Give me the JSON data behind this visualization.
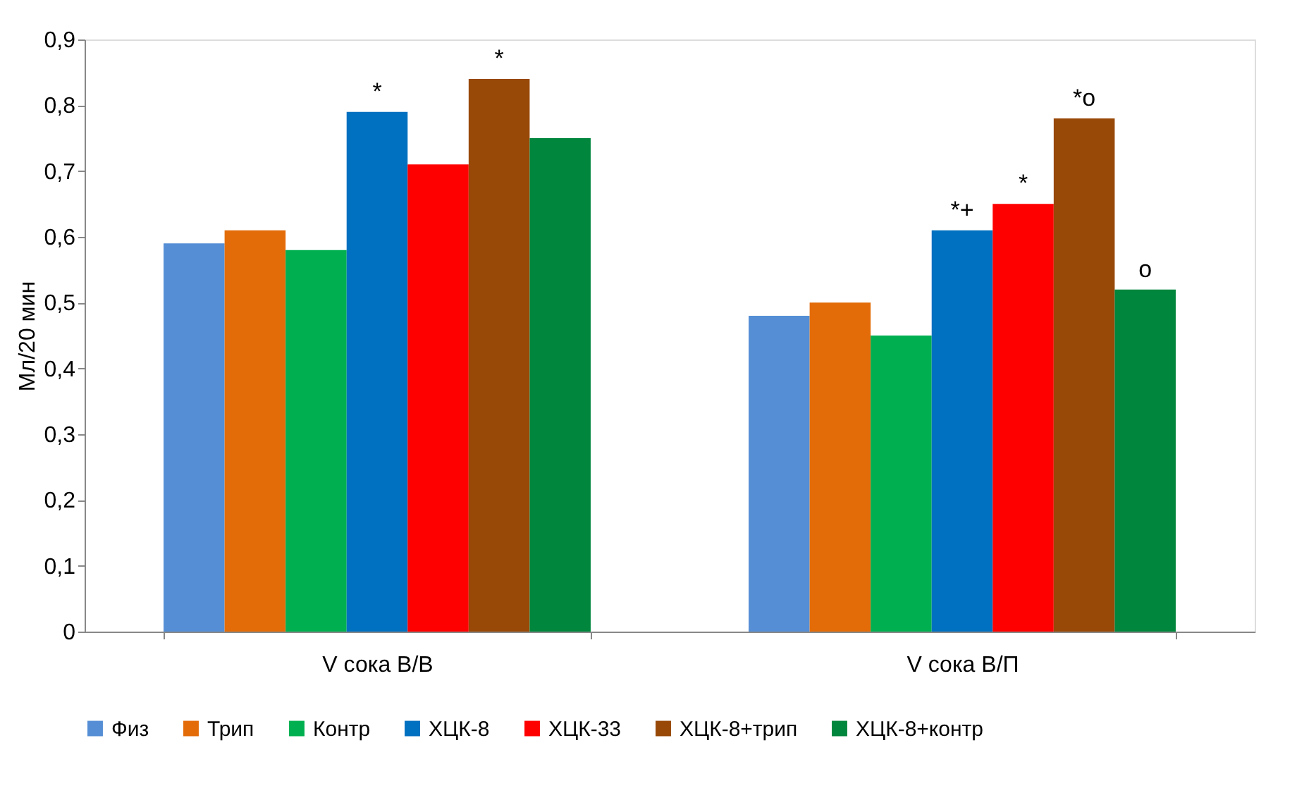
{
  "chart_data": {
    "type": "bar",
    "ylabel": "Мл/20 мин",
    "categories": [
      "V  сока В/В",
      "V  сока  В/П"
    ],
    "series": [
      {
        "name": "Физ",
        "color": "#558ed5",
        "values": [
          0.59,
          0.48
        ]
      },
      {
        "name": "Трип",
        "color": "#e36c09",
        "values": [
          0.61,
          0.5
        ]
      },
      {
        "name": "Контр",
        "color": "#00b050",
        "values": [
          0.58,
          0.45
        ]
      },
      {
        "name": "ХЦК-8",
        "color": "#0070c0",
        "values": [
          0.79,
          0.61
        ],
        "value_labels": [
          "*",
          "*+"
        ]
      },
      {
        "name": "ХЦК-33",
        "color": "#ff0000",
        "values": [
          0.71,
          0.65
        ],
        "value_labels": [
          null,
          "*"
        ]
      },
      {
        "name": "ХЦК-8+трип",
        "color": "#984807",
        "values": [
          0.84,
          0.78
        ],
        "value_labels": [
          "*",
          "*o"
        ]
      },
      {
        "name": "ХЦК-8+контр",
        "color": "#00863d",
        "values": [
          0.75,
          0.52
        ],
        "value_labels": [
          null,
          "o"
        ]
      }
    ],
    "ylim": [
      0,
      0.9
    ],
    "yticks": [
      0,
      {
        "value": 0.1,
        "label": "0,1"
      },
      {
        "value": 0.2,
        "label": "0,2"
      },
      {
        "value": 0.3,
        "label": "0,3"
      },
      {
        "value": 0.4,
        "label": "0,4"
      },
      {
        "value": 0.5,
        "label": "0,5"
      },
      {
        "value": 0.6,
        "label": "0,6"
      },
      {
        "value": 0.7,
        "label": "0,7"
      },
      {
        "value": 0.8,
        "label": "0,8"
      },
      {
        "value": 0.9,
        "label": "0,9"
      }
    ],
    "grid": false,
    "legend": "bottom"
  }
}
